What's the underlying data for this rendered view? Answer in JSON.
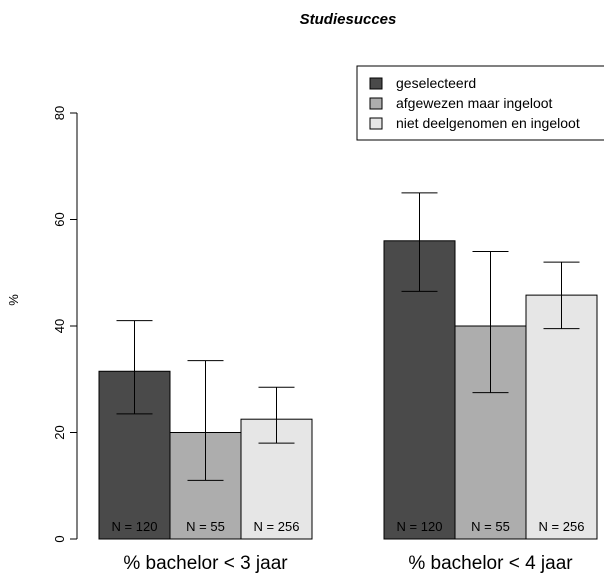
{
  "chart_data": {
    "type": "bar",
    "title": "Studiesucces",
    "xlabel": "",
    "ylabel": "%",
    "ylim": [
      0,
      80
    ],
    "yticks": [
      0,
      20,
      40,
      60,
      80
    ],
    "categories": [
      "% bachelor < 3 jaar",
      "% bachelor < 4 jaar"
    ],
    "series": [
      {
        "name": "geselecteerd",
        "color": "#4a4a4a",
        "values": [
          31.5,
          56
        ],
        "ci_low": [
          23.5,
          46.5
        ],
        "ci_high": [
          41,
          65
        ],
        "n_labels": [
          "N = 120",
          "N = 120"
        ]
      },
      {
        "name": "afgewezen maar ingeloot",
        "color": "#adadad",
        "values": [
          20,
          40
        ],
        "ci_low": [
          11,
          27.5
        ],
        "ci_high": [
          33.5,
          54
        ],
        "n_labels": [
          "N = 55",
          "N = 55"
        ]
      },
      {
        "name": "niet deelgenomen en ingeloot",
        "color": "#e6e6e6",
        "values": [
          22.5,
          45.8
        ],
        "ci_low": [
          18,
          39.5
        ],
        "ci_high": [
          28.5,
          52
        ],
        "n_labels": [
          "N = 256",
          "N = 256"
        ]
      }
    ],
    "legend_position": "top-right",
    "grid": false
  }
}
